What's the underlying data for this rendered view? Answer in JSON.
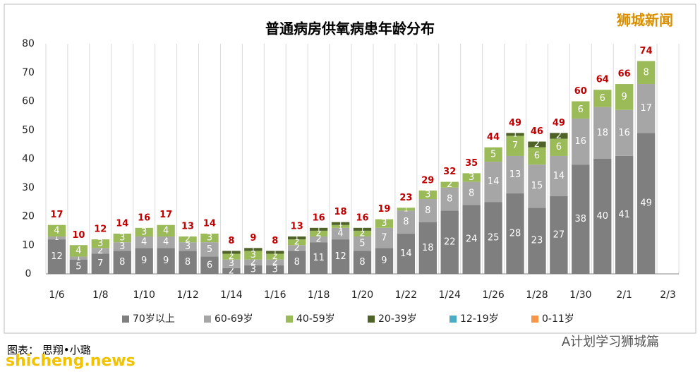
{
  "chart_data": {
    "type": "stacked-bar",
    "title": "普通病房供氧病患年龄分布",
    "categories": [
      "1/6",
      null,
      "1/8",
      null,
      "1/10",
      null,
      "1/12",
      null,
      "1/14",
      null,
      "1/16",
      null,
      "1/18",
      null,
      "1/20",
      null,
      "1/22",
      null,
      "1/24",
      null,
      "1/26",
      null,
      "1/28",
      null,
      "1/30",
      null,
      "2/1",
      null,
      "2/3"
    ],
    "series": [
      {
        "name": "70岁以上",
        "color": "#7f7f7f",
        "values": [
          12,
          5,
          7,
          8,
          9,
          9,
          8,
          6,
          2,
          3,
          3,
          8,
          11,
          12,
          8,
          9,
          14,
          18,
          22,
          24,
          25,
          28,
          23,
          27,
          38,
          40,
          41,
          49,
          null
        ]
      },
      {
        "name": "60-69岁",
        "color": "#a6a6a6",
        "values": [
          1,
          1,
          2,
          3,
          4,
          4,
          3,
          5,
          3,
          2,
          2,
          2,
          2,
          4,
          5,
          7,
          8,
          8,
          8,
          8,
          14,
          13,
          15,
          14,
          16,
          18,
          16,
          17,
          null
        ]
      },
      {
        "name": "40-59岁",
        "color": "#9bbb59",
        "values": [
          4,
          4,
          3,
          3,
          3,
          4,
          2,
          3,
          2,
          3,
          2,
          2,
          2,
          1,
          2,
          3,
          1,
          3,
          2,
          3,
          5,
          7,
          6,
          6,
          6,
          6,
          9,
          8,
          null
        ]
      },
      {
        "name": "20-39岁",
        "color": "#4f6228",
        "values": [
          0,
          0,
          0,
          0,
          0,
          0,
          0,
          0,
          1,
          1,
          1,
          1,
          1,
          1,
          1,
          0,
          0,
          0,
          0,
          0,
          0,
          1,
          2,
          2,
          0,
          0,
          0,
          0,
          null
        ]
      },
      {
        "name": "12-19岁",
        "color": "#4bacc6",
        "values": [
          0,
          0,
          0,
          0,
          0,
          0,
          0,
          0,
          0,
          0,
          0,
          0,
          0,
          0,
          0,
          0,
          0,
          0,
          0,
          0,
          0,
          0,
          0,
          0,
          0,
          0,
          0,
          0,
          null
        ]
      },
      {
        "name": "0-11岁",
        "color": "#f79646",
        "values": [
          0,
          0,
          0,
          0,
          0,
          0,
          0,
          0,
          0,
          0,
          0,
          0,
          0,
          0,
          0,
          0,
          0,
          0,
          0,
          0,
          0,
          0,
          0,
          0,
          0,
          0,
          0,
          0,
          null
        ]
      }
    ],
    "totals": [
      17,
      10,
      12,
      14,
      16,
      17,
      13,
      14,
      8,
      9,
      8,
      13,
      16,
      18,
      16,
      19,
      23,
      29,
      32,
      35,
      44,
      49,
      46,
      49,
      60,
      64,
      66,
      74,
      null
    ],
    "ylim": [
      0,
      80
    ],
    "yticks": [
      0,
      10,
      20,
      30,
      40,
      50,
      60,
      70,
      80
    ],
    "grid": true,
    "legend": "bottom"
  },
  "watermark": "狮城新闻",
  "credit": "图表：  思翔•小璐",
  "account": "A计划学习狮城篇",
  "site": "shicheng.news"
}
